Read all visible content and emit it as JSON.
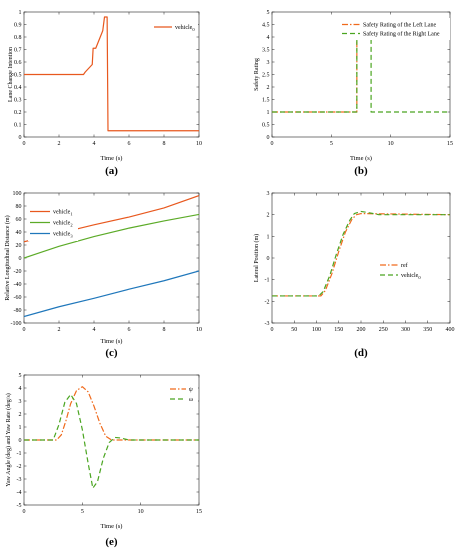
{
  "colors": {
    "orange": "#e8581e",
    "green": "#5cab28",
    "blue": "#1f77bb",
    "axis": "#222222",
    "dashOrange": "#f06a1c",
    "dashGreen": "#4aa520"
  },
  "chart_data": [
    {
      "id": "a",
      "type": "line",
      "panel_label": "(a)",
      "xlabel": "Time (s)",
      "ylabel": "Lane Change Intention",
      "xlim": [
        0,
        10
      ],
      "ylim": [
        0,
        1
      ],
      "xticks": [
        0,
        2,
        4,
        6,
        8,
        10
      ],
      "yticks": [
        0,
        0.1,
        0.2,
        0.3,
        0.4,
        0.5,
        0.6,
        0.7,
        0.8,
        0.9,
        1
      ],
      "legend_position": "top-right",
      "series": [
        {
          "name": "vehicle",
          "name_sub": "0",
          "color": "#e8581e",
          "dash": "",
          "points": [
            [
              0,
              0.5
            ],
            [
              3.4,
              0.5
            ],
            [
              3.5,
              0.52
            ],
            [
              3.9,
              0.58
            ],
            [
              3.95,
              0.71
            ],
            [
              4.1,
              0.71
            ],
            [
              4.3,
              0.78
            ],
            [
              4.5,
              0.85
            ],
            [
              4.6,
              0.96
            ],
            [
              4.7,
              0.96
            ],
            [
              4.75,
              0.96
            ],
            [
              4.8,
              0.05
            ],
            [
              10,
              0.05
            ]
          ]
        }
      ]
    },
    {
      "id": "b",
      "type": "line",
      "panel_label": "(b)",
      "xlabel": "Time (s)",
      "ylabel": "Safety Rating",
      "xlim": [
        0,
        15
      ],
      "ylim": [
        0,
        5
      ],
      "xticks": [
        0,
        5,
        10,
        15
      ],
      "yticks": [
        0,
        0.5,
        1,
        1.5,
        2,
        2.5,
        3,
        3.5,
        4,
        4.5,
        5
      ],
      "legend_position": "top-right",
      "series": [
        {
          "name": "Safety Rating of the Left Lane",
          "color": "#f06a1c",
          "dash": "6 2 1.5 2",
          "points": [
            [
              0,
              1
            ],
            [
              7.15,
              1
            ],
            [
              7.15,
              4
            ],
            [
              15,
              4
            ]
          ]
        },
        {
          "name": "Safety Rating of the Right Lane",
          "color": "#4aa520",
          "dash": "5 3",
          "points": [
            [
              0,
              1
            ],
            [
              7.15,
              1
            ],
            [
              7.15,
              4
            ],
            [
              8.35,
              4
            ],
            [
              8.35,
              1
            ],
            [
              15,
              1
            ]
          ]
        }
      ]
    },
    {
      "id": "c",
      "type": "line",
      "panel_label": "(c)",
      "xlabel": "Time (s)",
      "ylabel": "Relative Longitudinal Distance (m)",
      "xlim": [
        0,
        10
      ],
      "ylim": [
        -100,
        100
      ],
      "xticks": [
        0,
        2,
        4,
        6,
        8,
        10
      ],
      "yticks": [
        -100,
        -80,
        -60,
        -40,
        -20,
        0,
        20,
        40,
        60,
        80,
        100
      ],
      "legend_position": "top-left",
      "series": [
        {
          "name": "vehicle",
          "name_sub": "1",
          "color": "#e8581e",
          "dash": "",
          "points": [
            [
              0,
              25
            ],
            [
              2,
              38
            ],
            [
              4,
              51
            ],
            [
              6,
              63
            ],
            [
              8,
              77
            ],
            [
              10,
              96
            ]
          ]
        },
        {
          "name": "vehicle",
          "name_sub": "2",
          "color": "#5cab28",
          "dash": "",
          "points": [
            [
              0,
              0
            ],
            [
              2,
              18
            ],
            [
              4,
              33
            ],
            [
              6,
              46
            ],
            [
              8,
              57
            ],
            [
              10,
              67
            ]
          ]
        },
        {
          "name": "vehicle",
          "name_sub": "3",
          "color": "#1f77bb",
          "dash": "",
          "points": [
            [
              0,
              -90
            ],
            [
              2,
              -75
            ],
            [
              4,
              -62
            ],
            [
              6,
              -48
            ],
            [
              8,
              -35
            ],
            [
              10,
              -20
            ]
          ]
        }
      ]
    },
    {
      "id": "d",
      "type": "line",
      "panel_label": "(d)",
      "xlabel": "",
      "ylabel": "Lateral Position (m)",
      "xlim": [
        0,
        400
      ],
      "ylim": [
        -3,
        3
      ],
      "xticks": [
        0,
        50,
        100,
        150,
        200,
        250,
        300,
        350,
        400
      ],
      "yticks": [
        -3,
        -2,
        -1,
        0,
        1,
        2,
        3
      ],
      "legend_position": "right",
      "series": [
        {
          "name": "ref",
          "color": "#f06a1c",
          "dash": "6 2 1.5 2",
          "points": [
            [
              0,
              -1.75
            ],
            [
              110,
              -1.75
            ],
            [
              120,
              -1.5
            ],
            [
              135,
              -0.7
            ],
            [
              150,
              0.3
            ],
            [
              165,
              1.2
            ],
            [
              180,
              1.8
            ],
            [
              190,
              2.0
            ],
            [
              200,
              2.05
            ],
            [
              400,
              2.0
            ]
          ]
        },
        {
          "name": "vehicle",
          "name_sub": "0",
          "color": "#4aa520",
          "dash": "5 3",
          "points": [
            [
              0,
              -1.75
            ],
            [
              105,
              -1.75
            ],
            [
              115,
              -1.55
            ],
            [
              130,
              -0.8
            ],
            [
              145,
              0.2
            ],
            [
              160,
              1.1
            ],
            [
              175,
              1.75
            ],
            [
              185,
              2.05
            ],
            [
              200,
              2.15
            ],
            [
              215,
              2.1
            ],
            [
              240,
              2.0
            ],
            [
              400,
              2.0
            ]
          ]
        }
      ]
    },
    {
      "id": "e",
      "type": "line",
      "panel_label": "(e)",
      "xlabel": "Time (s)",
      "ylabel": "Yaw Angle (deg) and Yaw Rate (deg/s)",
      "xlim": [
        0,
        15
      ],
      "ylim": [
        -5,
        5
      ],
      "xticks": [
        0,
        5,
        10,
        15
      ],
      "yticks": [
        -5,
        -4,
        -3,
        -2,
        -1,
        0,
        1,
        2,
        3,
        4,
        5
      ],
      "legend_position": "top-right",
      "series": [
        {
          "name": "ψ",
          "color": "#f06a1c",
          "dash": "6 2 1.5 2",
          "points": [
            [
              0,
              0
            ],
            [
              2.8,
              0
            ],
            [
              3.2,
              0.4
            ],
            [
              3.6,
              1.5
            ],
            [
              4,
              2.8
            ],
            [
              4.5,
              3.8
            ],
            [
              5,
              4.1
            ],
            [
              5.5,
              3.7
            ],
            [
              6,
              2.6
            ],
            [
              6.5,
              1.3
            ],
            [
              7,
              0.3
            ],
            [
              7.5,
              0
            ],
            [
              15,
              0
            ]
          ]
        },
        {
          "name": "ω",
          "color": "#4aa520",
          "dash": "5 3",
          "points": [
            [
              0,
              0
            ],
            [
              2.5,
              0
            ],
            [
              3,
              1.2
            ],
            [
              3.5,
              2.9
            ],
            [
              4,
              3.5
            ],
            [
              4.5,
              2.8
            ],
            [
              5,
              0.8
            ],
            [
              5.5,
              -1.8
            ],
            [
              5.9,
              -3.7
            ],
            [
              6.3,
              -3.2
            ],
            [
              6.8,
              -1.4
            ],
            [
              7.3,
              -0.2
            ],
            [
              7.8,
              0.2
            ],
            [
              8.3,
              0.15
            ],
            [
              9,
              0
            ],
            [
              15,
              0
            ]
          ]
        }
      ]
    }
  ]
}
